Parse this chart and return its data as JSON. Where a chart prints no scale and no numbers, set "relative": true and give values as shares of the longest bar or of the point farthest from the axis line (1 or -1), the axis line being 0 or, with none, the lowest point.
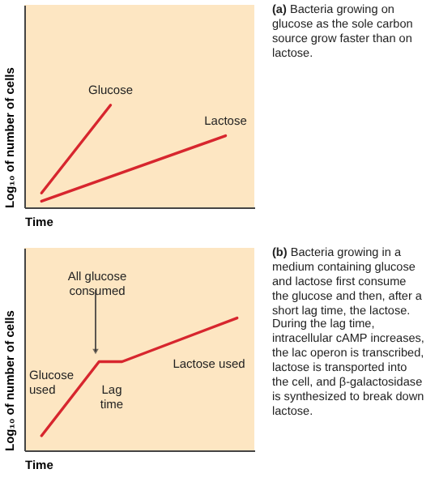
{
  "chart_data": [
    {
      "type": "line",
      "relative": true,
      "categories": [
        null,
        null,
        null,
        null,
        null,
        null,
        null,
        null,
        null,
        null,
        null,
        null,
        null,
        null,
        null,
        null,
        null,
        null,
        null,
        null
      ],
      "xlabel": "Time",
      "ylabel": "Log₁₀ of number of cells",
      "series": [
        {
          "name": "Glucose",
          "color": "#d7262e",
          "values": [
            null,
            0.14,
            null,
            null,
            null,
            null,
            null,
            1,
            null,
            null,
            null,
            null,
            null,
            null,
            null,
            null,
            null,
            null,
            null,
            null
          ]
        },
        {
          "name": "Lactose",
          "color": "#d7262e",
          "values": [
            null,
            0.06,
            null,
            null,
            null,
            null,
            null,
            null,
            null,
            null,
            null,
            null,
            null,
            null,
            null,
            null,
            null,
            0.7,
            null,
            null
          ]
        }
      ],
      "annotations": [
        "(a) Bacteria growing on glucose as the sole carbon source grow faster than on lactose."
      ]
    },
    {
      "type": "line",
      "relative": true,
      "categories": [
        null,
        null,
        null,
        null,
        null,
        null,
        null,
        null,
        null,
        null,
        null,
        null,
        null,
        null,
        null,
        null,
        null,
        null,
        null,
        null
      ],
      "xlabel": "Time",
      "ylabel": "Log₁₀ of number of cells",
      "series": [
        {
          "color": "#d7262e",
          "values": [
            null,
            0.11,
            null,
            null,
            null,
            null,
            0.67,
            null,
            0.67,
            null,
            null,
            null,
            null,
            null,
            null,
            null,
            null,
            null,
            1,
            null
          ]
        }
      ],
      "annotations": [
        "All glucose consumed",
        "Glucose used",
        "Lag time",
        "Lactose used",
        "(b) Bacteria growing in a medium containing glucose and lactose first consume the glucose and then, after a short lag time, the lactose. During the lag time, intracellular cAMP increases, the lac operon is transcribed, lactose is transported into the cell, and β-galactosidase is synthesized to break down lactose."
      ]
    }
  ]
}
